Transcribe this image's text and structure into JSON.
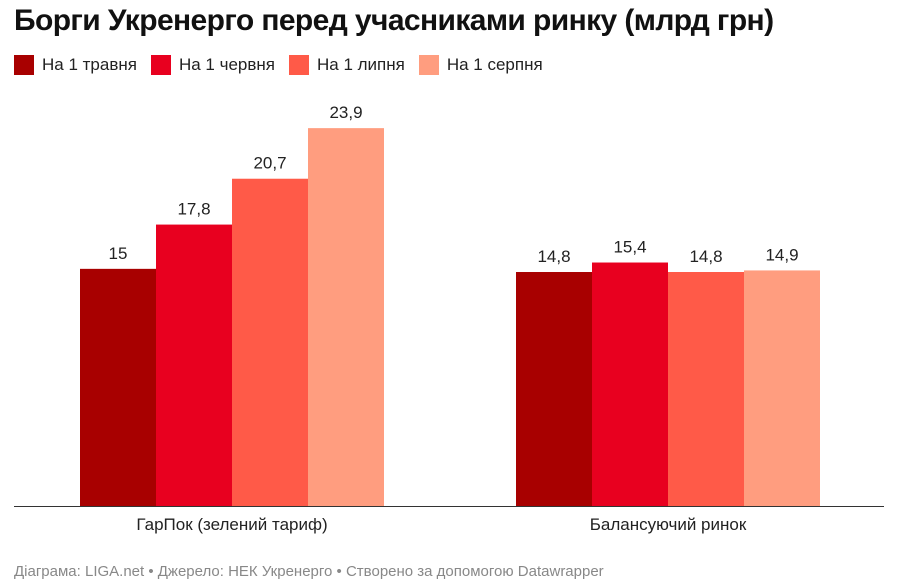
{
  "chart_data": {
    "type": "bar",
    "title": "Борги Укренерго перед учасниками ринку (млрд грн)",
    "categories": [
      "ГарПок (зелений тариф)",
      "Балансуючий ринок"
    ],
    "series": [
      {
        "name": "На 1 травня",
        "values": [
          15,
          14.8
        ],
        "labels": [
          "15",
          "14,8"
        ],
        "color": "#a80000"
      },
      {
        "name": "На 1 червня",
        "values": [
          17.8,
          15.4
        ],
        "labels": [
          "17,8",
          "15,4"
        ],
        "color": "#e8001f"
      },
      {
        "name": "На 1 липня",
        "values": [
          20.7,
          14.8
        ],
        "labels": [
          "20,7",
          "14,8"
        ],
        "color": "#ff5a48"
      },
      {
        "name": "На 1 серпня",
        "values": [
          23.9,
          14.9
        ],
        "labels": [
          "23,9",
          "14,9"
        ],
        "color": "#ff9d7f"
      }
    ],
    "ylim": [
      0,
      25.3
    ],
    "grid": false,
    "legend_position": "top-left"
  },
  "footer": "Діаграма: LIGA.net • Джерело: НЕК Укренерго • Створено за допомогою Datawrapper"
}
